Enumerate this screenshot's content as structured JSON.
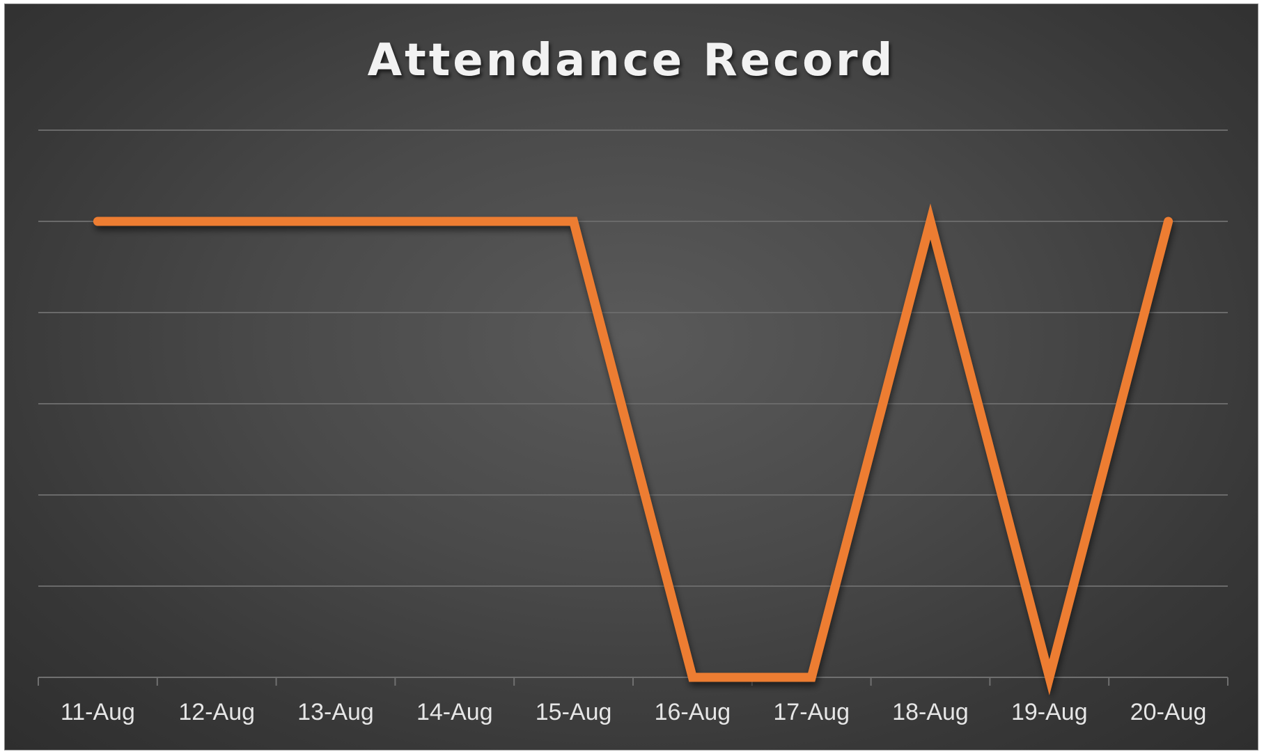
{
  "chart_data": {
    "type": "line",
    "title": "Attendance Record",
    "xlabel": "",
    "ylabel": "",
    "categories": [
      "11-Aug",
      "12-Aug",
      "13-Aug",
      "14-Aug",
      "15-Aug",
      "16-Aug",
      "17-Aug",
      "18-Aug",
      "19-Aug",
      "20-Aug"
    ],
    "series": [
      {
        "values": [
          1,
          1,
          1,
          1,
          1,
          0,
          0,
          1,
          0,
          1
        ],
        "color": "#ED7D31"
      }
    ],
    "ylim": [
      0,
      1.2
    ],
    "y_gridlines": 7,
    "grid": true,
    "legend": "none"
  },
  "colors": {
    "background": "#404040",
    "series": "#ED7D31",
    "text": "#F2F2F2"
  }
}
